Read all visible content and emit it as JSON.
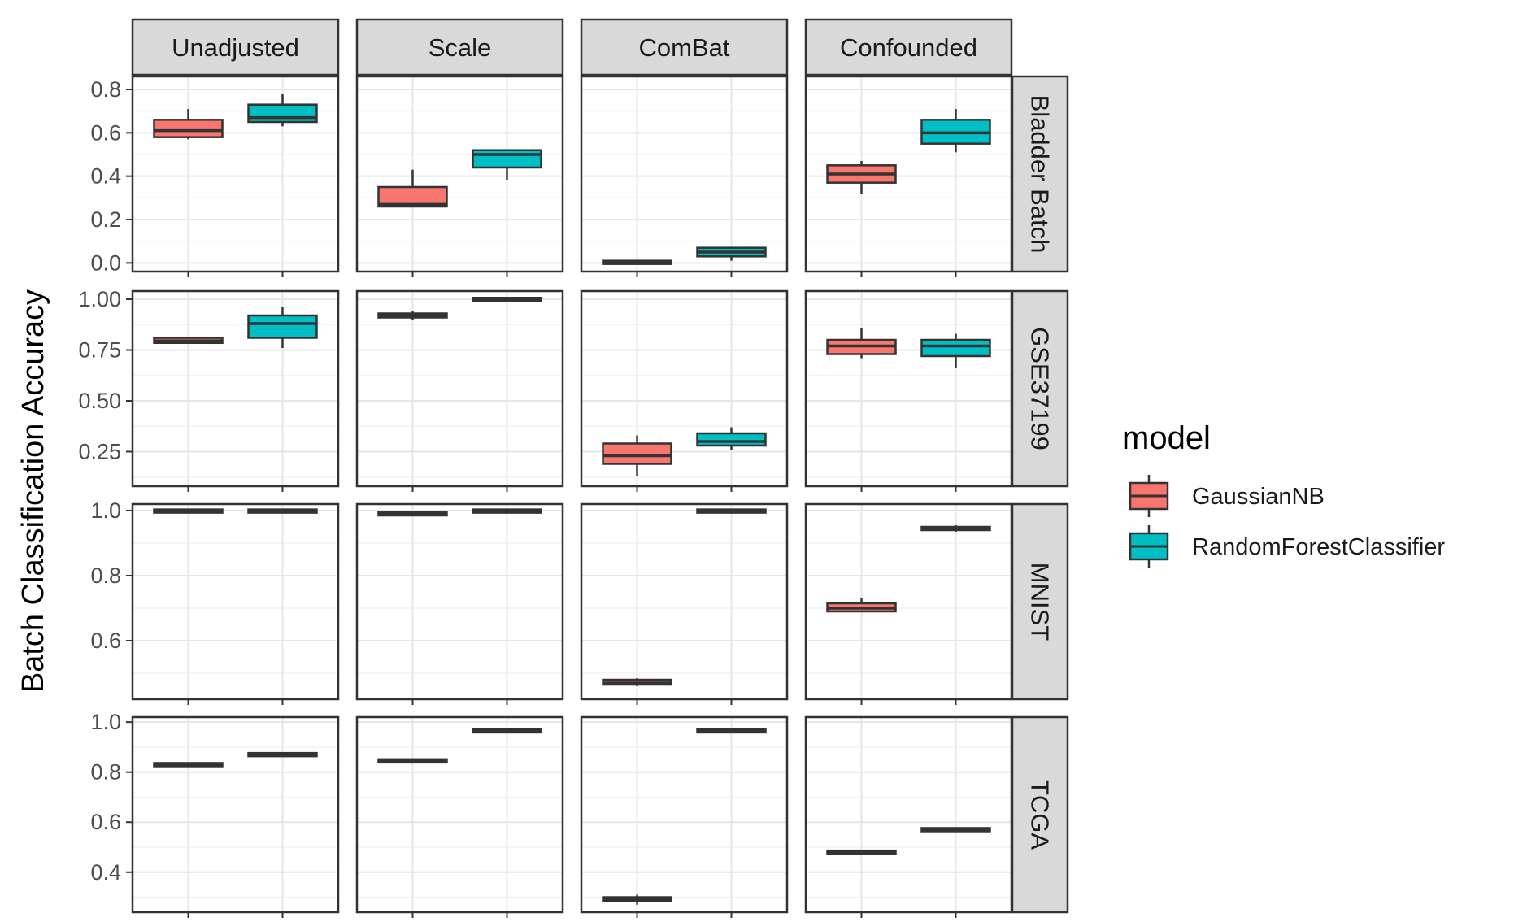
{
  "chart_data": {
    "type": "boxplot",
    "layout": "facet_grid",
    "ylabel": "Batch Classification Accuracy",
    "xlabel": "",
    "columns": [
      "Unadjusted",
      "Scale",
      "ComBat",
      "Confounded"
    ],
    "rows": [
      {
        "name": "Bladder Batch",
        "ylim": [
          -0.04,
          0.86
        ],
        "ticks": [
          0.0,
          0.2,
          0.4,
          0.6,
          0.8
        ],
        "tick_labels": [
          "0.0",
          "0.2",
          "0.4",
          "0.6",
          "0.8"
        ]
      },
      {
        "name": "GSE37199",
        "ylim": [
          0.08,
          1.04
        ],
        "ticks": [
          0.25,
          0.5,
          0.75,
          1.0
        ],
        "tick_labels": [
          "0.25",
          "0.50",
          "0.75",
          "1.00"
        ]
      },
      {
        "name": "MNIST",
        "ylim": [
          0.42,
          1.02
        ],
        "ticks": [
          0.6,
          0.8,
          1.0
        ],
        "tick_labels": [
          "0.6",
          "0.8",
          "1.0"
        ]
      },
      {
        "name": "TCGA",
        "ylim": [
          0.24,
          1.02
        ],
        "ticks": [
          0.4,
          0.6,
          0.8,
          1.0
        ],
        "tick_labels": [
          "0.4",
          "0.6",
          "0.8",
          "1.0"
        ]
      }
    ],
    "legend": {
      "title": "model",
      "position": "right",
      "entries": [
        {
          "name": "GaussianNB",
          "color": "#F8766D"
        },
        {
          "name": "RandomForestClassifier",
          "color": "#00BFC4"
        }
      ]
    },
    "grid": true,
    "panels": [
      {
        "row": "Bladder Batch",
        "column": "Unadjusted",
        "boxes": [
          {
            "model": "GaussianNB",
            "min": 0.57,
            "q1": 0.58,
            "median": 0.61,
            "q3": 0.66,
            "max": 0.71
          },
          {
            "model": "RandomForestClassifier",
            "min": 0.63,
            "q1": 0.65,
            "median": 0.67,
            "q3": 0.73,
            "max": 0.78
          }
        ]
      },
      {
        "row": "Bladder Batch",
        "column": "Scale",
        "boxes": [
          {
            "model": "GaussianNB",
            "min": 0.26,
            "q1": 0.26,
            "median": 0.27,
            "q3": 0.35,
            "max": 0.43
          },
          {
            "model": "RandomForestClassifier",
            "min": 0.38,
            "q1": 0.44,
            "median": 0.5,
            "q3": 0.52,
            "max": 0.52
          }
        ]
      },
      {
        "row": "Bladder Batch",
        "column": "ComBat",
        "boxes": [
          {
            "model": "GaussianNB",
            "min": 0.0,
            "q1": 0.0,
            "median": 0.0,
            "q3": 0.005,
            "max": 0.005
          },
          {
            "model": "RandomForestClassifier",
            "min": 0.01,
            "q1": 0.03,
            "median": 0.05,
            "q3": 0.07,
            "max": 0.07
          }
        ]
      },
      {
        "row": "Bladder Batch",
        "column": "Confounded",
        "boxes": [
          {
            "model": "GaussianNB",
            "min": 0.32,
            "q1": 0.37,
            "median": 0.41,
            "q3": 0.45,
            "max": 0.47
          },
          {
            "model": "RandomForestClassifier",
            "min": 0.51,
            "q1": 0.55,
            "median": 0.6,
            "q3": 0.66,
            "max": 0.71
          }
        ]
      },
      {
        "row": "GSE37199",
        "column": "Unadjusted",
        "boxes": [
          {
            "model": "GaussianNB",
            "min": 0.78,
            "q1": 0.785,
            "median": 0.795,
            "q3": 0.81,
            "max": 0.815
          },
          {
            "model": "RandomForestClassifier",
            "min": 0.76,
            "q1": 0.81,
            "median": 0.88,
            "q3": 0.92,
            "max": 0.96
          }
        ]
      },
      {
        "row": "GSE37199",
        "column": "Scale",
        "boxes": [
          {
            "model": "GaussianNB",
            "min": 0.9,
            "q1": 0.91,
            "median": 0.92,
            "q3": 0.93,
            "max": 0.94
          },
          {
            "model": "RandomForestClassifier",
            "min": 0.995,
            "q1": 0.998,
            "median": 1.0,
            "q3": 1.0,
            "max": 1.0
          }
        ]
      },
      {
        "row": "GSE37199",
        "column": "ComBat",
        "boxes": [
          {
            "model": "GaussianNB",
            "min": 0.13,
            "q1": 0.19,
            "median": 0.23,
            "q3": 0.29,
            "max": 0.33
          },
          {
            "model": "RandomForestClassifier",
            "min": 0.26,
            "q1": 0.28,
            "median": 0.3,
            "q3": 0.34,
            "max": 0.37
          }
        ]
      },
      {
        "row": "GSE37199",
        "column": "Confounded",
        "boxes": [
          {
            "model": "GaussianNB",
            "min": 0.71,
            "q1": 0.73,
            "median": 0.77,
            "q3": 0.8,
            "max": 0.86
          },
          {
            "model": "RandomForestClassifier",
            "min": 0.66,
            "q1": 0.72,
            "median": 0.77,
            "q3": 0.8,
            "max": 0.83
          }
        ]
      },
      {
        "row": "MNIST",
        "column": "Unadjusted",
        "boxes": [
          {
            "model": "GaussianNB",
            "min": 0.995,
            "q1": 0.997,
            "median": 1.0,
            "q3": 1.0,
            "max": 1.0
          },
          {
            "model": "RandomForestClassifier",
            "min": 0.995,
            "q1": 0.997,
            "median": 1.0,
            "q3": 1.0,
            "max": 1.0
          }
        ]
      },
      {
        "row": "MNIST",
        "column": "Scale",
        "boxes": [
          {
            "model": "GaussianNB",
            "min": 0.985,
            "q1": 0.987,
            "median": 0.99,
            "q3": 0.993,
            "max": 0.995
          },
          {
            "model": "RandomForestClassifier",
            "min": 0.995,
            "q1": 0.997,
            "median": 1.0,
            "q3": 1.0,
            "max": 1.0
          }
        ]
      },
      {
        "row": "MNIST",
        "column": "ComBat",
        "boxes": [
          {
            "model": "GaussianNB",
            "min": 0.46,
            "q1": 0.465,
            "median": 0.47,
            "q3": 0.48,
            "max": 0.485
          },
          {
            "model": "RandomForestClassifier",
            "min": 0.995,
            "q1": 0.997,
            "median": 1.0,
            "q3": 1.0,
            "max": 1.0
          }
        ]
      },
      {
        "row": "MNIST",
        "column": "Confounded",
        "boxes": [
          {
            "model": "GaussianNB",
            "min": 0.69,
            "q1": 0.69,
            "median": 0.7,
            "q3": 0.715,
            "max": 0.73
          },
          {
            "model": "RandomForestClassifier",
            "min": 0.935,
            "q1": 0.94,
            "median": 0.945,
            "q3": 0.95,
            "max": 0.955
          }
        ]
      },
      {
        "row": "TCGA",
        "column": "Unadjusted",
        "boxes": [
          {
            "model": "GaussianNB",
            "min": 0.828,
            "q1": 0.829,
            "median": 0.83,
            "q3": 0.831,
            "max": 0.832
          },
          {
            "model": "RandomForestClassifier",
            "min": 0.868,
            "q1": 0.869,
            "median": 0.87,
            "q3": 0.871,
            "max": 0.872
          }
        ]
      },
      {
        "row": "TCGA",
        "column": "Scale",
        "boxes": [
          {
            "model": "GaussianNB",
            "min": 0.843,
            "q1": 0.844,
            "median": 0.845,
            "q3": 0.846,
            "max": 0.847
          },
          {
            "model": "RandomForestClassifier",
            "min": 0.963,
            "q1": 0.964,
            "median": 0.965,
            "q3": 0.966,
            "max": 0.967
          }
        ]
      },
      {
        "row": "TCGA",
        "column": "ComBat",
        "boxes": [
          {
            "model": "GaussianNB",
            "min": 0.27,
            "q1": 0.285,
            "median": 0.29,
            "q3": 0.3,
            "max": 0.31
          },
          {
            "model": "RandomForestClassifier",
            "min": 0.963,
            "q1": 0.964,
            "median": 0.965,
            "q3": 0.966,
            "max": 0.967
          }
        ]
      },
      {
        "row": "TCGA",
        "column": "Confounded",
        "boxes": [
          {
            "model": "GaussianNB",
            "min": 0.478,
            "q1": 0.479,
            "median": 0.48,
            "q3": 0.481,
            "max": 0.482
          },
          {
            "model": "RandomForestClassifier",
            "min": 0.568,
            "q1": 0.569,
            "median": 0.57,
            "q3": 0.571,
            "max": 0.572
          }
        ]
      }
    ]
  }
}
